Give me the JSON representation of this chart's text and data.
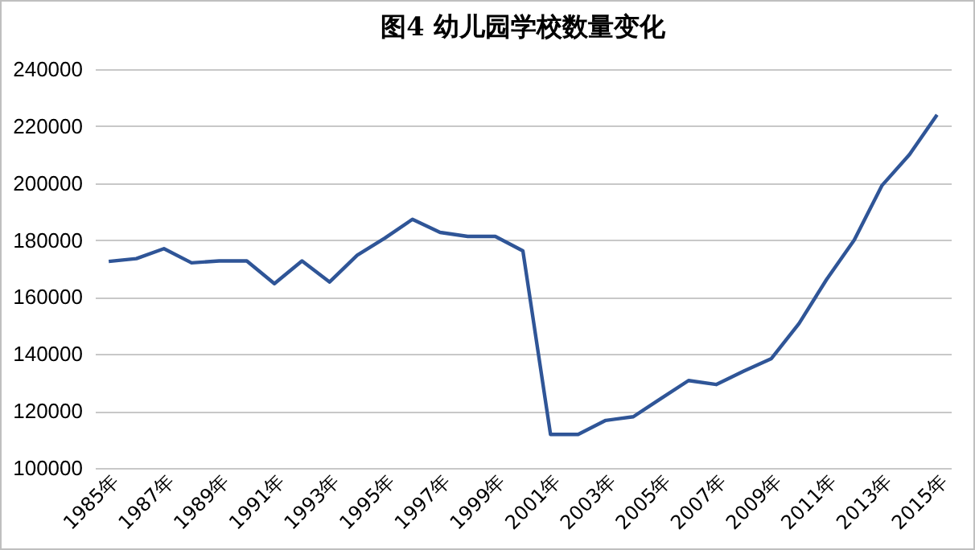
{
  "chart_data": {
    "type": "line",
    "title": "图4 幼儿园学校数量变化",
    "categories": [
      "1985年",
      null,
      "1987年",
      null,
      "1989年",
      null,
      "1991年",
      null,
      "1993年",
      null,
      "1995年",
      null,
      "1997年",
      null,
      "1999年",
      null,
      "2001年",
      null,
      "2003年",
      null,
      "2005年",
      null,
      "2007年",
      null,
      "2009年",
      null,
      "2011年",
      null,
      "2013年",
      null,
      "2015年"
    ],
    "series": [
      {
        "color": "#2f5597",
        "values": [
          172500,
          173500,
          177000,
          172000,
          172700,
          172700,
          164700,
          172700,
          165300,
          174700,
          180700,
          187300,
          182700,
          181300,
          181300,
          176200,
          111800,
          111800,
          116700,
          118000,
          124400,
          130700,
          129300,
          134000,
          138400,
          150700,
          166200,
          180000,
          199100,
          210000,
          224000
        ]
      }
    ],
    "ylim": [
      100000,
      240000
    ],
    "yticks": [
      100000,
      120000,
      140000,
      160000,
      180000,
      200000,
      220000,
      240000
    ],
    "grid": "y",
    "marker": "none",
    "line_style": "solid"
  }
}
